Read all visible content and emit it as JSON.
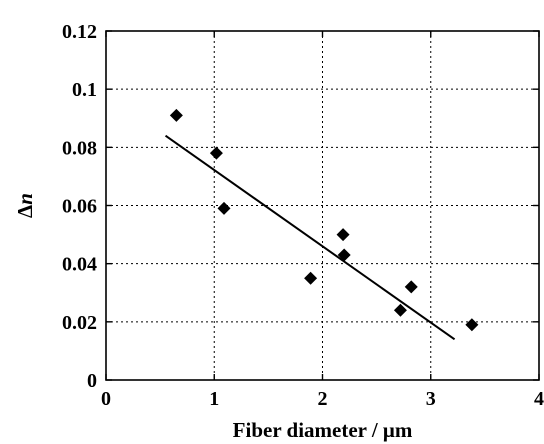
{
  "chart_data": {
    "type": "scatter",
    "title": "",
    "xlabel": "Fiber diameter / μm",
    "ylabel_prefix": "Δ",
    "ylabel_var": "n",
    "xlim": [
      0,
      4
    ],
    "ylim": [
      0,
      0.12
    ],
    "x_ticks": [
      0,
      1,
      2,
      3,
      4
    ],
    "x_tick_labels": [
      "0",
      "1",
      "2",
      "3",
      "4"
    ],
    "y_ticks": [
      0,
      0.02,
      0.04,
      0.06,
      0.08,
      0.1,
      0.12
    ],
    "y_tick_labels": [
      "0",
      "0.02",
      "0.04",
      "0.06",
      "0.08",
      "0.1",
      "0.12"
    ],
    "grid": true,
    "series": [
      {
        "marker": "diamond",
        "x": [
          0.65,
          1.02,
          1.09,
          1.89,
          2.19,
          2.2,
          2.72,
          2.82,
          3.38
        ],
        "y": [
          0.091,
          0.078,
          0.059,
          0.035,
          0.05,
          0.043,
          0.024,
          0.032,
          0.019
        ]
      }
    ],
    "trendline": {
      "x": [
        0.55,
        3.22
      ],
      "y": [
        0.084,
        0.014
      ]
    }
  }
}
